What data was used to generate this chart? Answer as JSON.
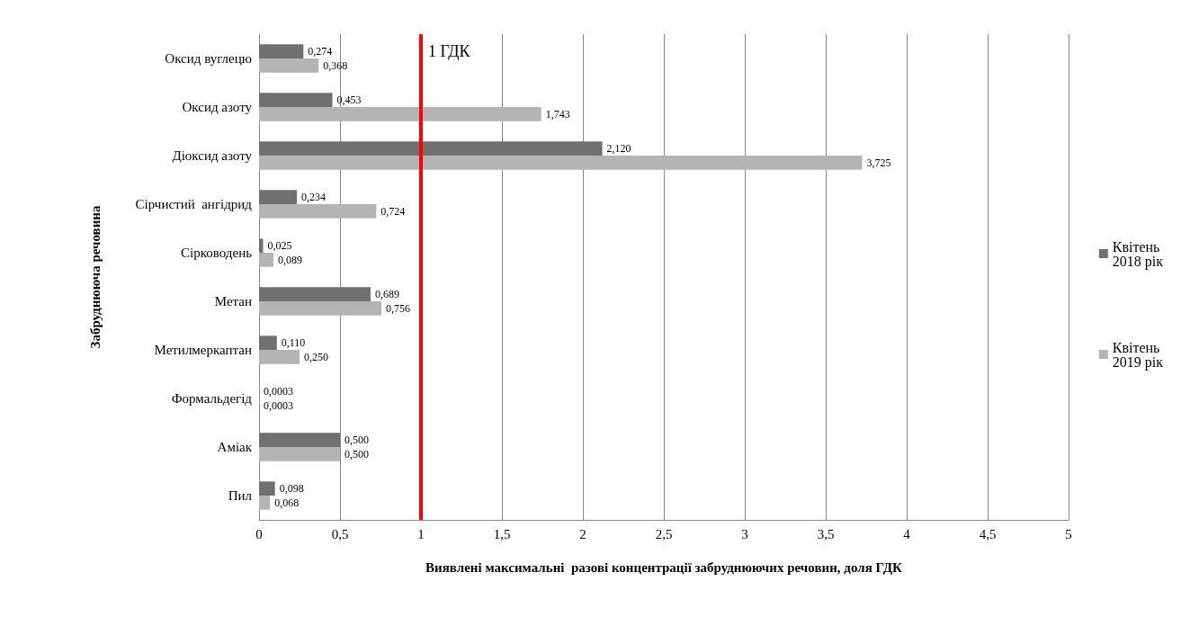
{
  "chart_data": {
    "type": "bar",
    "orientation": "horizontal",
    "xlabel": "Виявлені максимальні  разові концентрації забруднюючих речовин, доля ГДК",
    "ylabel": "Забруднююча речовина",
    "categories": [
      "Оксид вуглецю",
      "Оксид азоту",
      "Діоксид азоту",
      "Сірчистий  ангідрид",
      "Сірководень",
      "Метан",
      "Метилмеркаптан",
      "Формальдегід",
      "Аміак",
      "Пил"
    ],
    "series": [
      {
        "name": "Квітень 2018 рік",
        "color": "#707070",
        "values": [
          0.274,
          0.453,
          2.12,
          0.234,
          0.025,
          0.689,
          0.11,
          0.0003,
          0.5,
          0.098
        ],
        "value_labels": [
          "0,274",
          "0,453",
          "2,120",
          "0,234",
          "0,025",
          "0,689",
          "0,110",
          "0,0003",
          "0,500",
          "0,098"
        ]
      },
      {
        "name": "Квітень 2019 рік",
        "color": "#b4b4b4",
        "values": [
          0.368,
          1.743,
          3.725,
          0.724,
          0.089,
          0.756,
          0.25,
          0.0003,
          0.5,
          0.068
        ],
        "value_labels": [
          "0,368",
          "1,743",
          "3,725",
          "0,724",
          "0,089",
          "0,756",
          "0,250",
          "0,0003",
          "0,500",
          "0,068"
        ]
      }
    ],
    "xlim": [
      0,
      5
    ],
    "xticks": [
      0,
      {
        "value": 0.5,
        "label": "0,5"
      },
      1,
      {
        "value": 1.5,
        "label": "1,5"
      },
      2,
      {
        "value": 2.5,
        "label": "2,5"
      },
      3,
      {
        "value": 3.5,
        "label": "3,5"
      },
      4,
      {
        "value": 4.5,
        "label": "4,5"
      },
      5
    ],
    "grid": "x",
    "legend": "right",
    "ref_lines": [
      {
        "axis": "x",
        "value": 1,
        "label": "1 ГДК",
        "color": "#ff0000"
      }
    ]
  }
}
